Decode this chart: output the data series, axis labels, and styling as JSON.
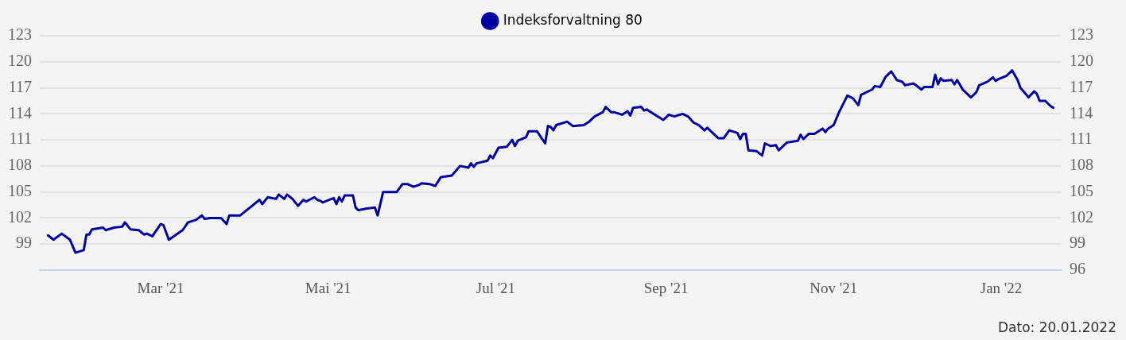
{
  "chart_data": {
    "type": "line",
    "annotations": [
      "Dato: 20.01.2022"
    ],
    "x": [
      "2021-01-19",
      "2021-01-21",
      "2021-01-24",
      "2021-01-27",
      "2021-01-29",
      "2021-02-01",
      "2021-02-02",
      "2021-02-03",
      "2021-02-04",
      "2021-02-08",
      "2021-02-09",
      "2021-02-12",
      "2021-02-15",
      "2021-02-16",
      "2021-02-18",
      "2021-02-21",
      "2021-02-23",
      "2021-02-24",
      "2021-02-26",
      "2021-03-01",
      "2021-03-02",
      "2021-03-04",
      "2021-03-09",
      "2021-03-11",
      "2021-03-14",
      "2021-03-16",
      "2021-03-17",
      "2021-03-19",
      "2021-03-23",
      "2021-03-25",
      "2021-03-26",
      "2021-03-30",
      "2021-04-06",
      "2021-04-07",
      "2021-04-09",
      "2021-04-12",
      "2021-04-13",
      "2021-04-15",
      "2021-04-16",
      "2021-04-18",
      "2021-04-20",
      "2021-04-22",
      "2021-04-23",
      "2021-04-26",
      "2021-04-27",
      "2021-04-28",
      "2021-04-29",
      "2021-05-03",
      "2021-05-04",
      "2021-05-05",
      "2021-05-06",
      "2021-05-07",
      "2021-05-10",
      "2021-05-11",
      "2021-05-12",
      "2021-05-15",
      "2021-05-18",
      "2021-05-19",
      "2021-05-21",
      "2021-05-26",
      "2021-05-28",
      "2021-05-30",
      "2021-06-01",
      "2021-06-03",
      "2021-06-04",
      "2021-06-07",
      "2021-06-09",
      "2021-06-11",
      "2021-06-15",
      "2021-06-18",
      "2021-06-21",
      "2021-06-22",
      "2021-06-23",
      "2021-06-24",
      "2021-06-28",
      "2021-06-29",
      "2021-06-30",
      "2021-07-02",
      "2021-07-05",
      "2021-07-07",
      "2021-07-08",
      "2021-07-09",
      "2021-07-12",
      "2021-07-13",
      "2021-07-16",
      "2021-07-19",
      "2021-07-20",
      "2021-07-21",
      "2021-07-22",
      "2021-07-23",
      "2021-07-27",
      "2021-07-29",
      "2021-08-02",
      "2021-08-04",
      "2021-08-06",
      "2021-08-09",
      "2021-08-10",
      "2021-08-12",
      "2021-08-13",
      "2021-08-16",
      "2021-08-18",
      "2021-08-19",
      "2021-08-20",
      "2021-08-23",
      "2021-08-24",
      "2021-08-25",
      "2021-08-28",
      "2021-08-31",
      "2021-09-02",
      "2021-09-04",
      "2021-09-07",
      "2021-09-09",
      "2021-09-11",
      "2021-09-13",
      "2021-09-15",
      "2021-09-16",
      "2021-09-20",
      "2021-09-22",
      "2021-09-24",
      "2021-09-27",
      "2021-09-28",
      "2021-09-29",
      "2021-09-30",
      "2021-10-01",
      "2021-10-04",
      "2021-10-06",
      "2021-10-07",
      "2021-10-09",
      "2021-10-11",
      "2021-10-12",
      "2021-10-15",
      "2021-10-19",
      "2021-10-20",
      "2021-10-21",
      "2021-10-23",
      "2021-10-25",
      "2021-10-28",
      "2021-10-29",
      "2021-10-30",
      "2021-11-01",
      "2021-11-03",
      "2021-11-06",
      "2021-11-08",
      "2021-11-10",
      "2021-11-11",
      "2021-11-15",
      "2021-11-16",
      "2021-11-18",
      "2021-11-20",
      "2021-11-22",
      "2021-11-24",
      "2021-11-26",
      "2021-11-27",
      "2021-11-30",
      "2021-12-01",
      "2021-12-03",
      "2021-12-04",
      "2021-12-07",
      "2021-12-08",
      "2021-12-09",
      "2021-12-10",
      "2021-12-11",
      "2021-12-14",
      "2021-12-15",
      "2021-12-16",
      "2021-12-18",
      "2021-12-21",
      "2021-12-23",
      "2021-12-24",
      "2021-12-27",
      "2021-12-29",
      "2021-12-30",
      "2021-12-31",
      "2022-01-03",
      "2022-01-05",
      "2022-01-07",
      "2022-01-08",
      "2022-01-11",
      "2022-01-13",
      "2022-01-14",
      "2022-01-15",
      "2022-01-17",
      "2022-01-19",
      "2022-01-20"
    ],
    "series": [
      {
        "name": "Indeksforvaltning 80",
        "color": "#0000a0",
        "values": [
          100.0,
          99.5,
          100.2,
          99.5,
          98.0,
          98.3,
          100.1,
          100.1,
          100.7,
          100.9,
          100.6,
          100.9,
          101.0,
          101.5,
          100.7,
          100.6,
          100.1,
          100.2,
          99.9,
          101.3,
          101.2,
          99.5,
          100.6,
          101.5,
          101.8,
          102.3,
          101.9,
          102.0,
          102.0,
          101.3,
          102.3,
          102.3,
          104.1,
          103.6,
          104.4,
          104.2,
          104.7,
          104.2,
          104.7,
          104.2,
          103.4,
          104.1,
          103.9,
          104.4,
          104.1,
          104.0,
          103.8,
          104.3,
          103.6,
          104.4,
          103.9,
          104.6,
          104.6,
          103.2,
          102.9,
          103.1,
          103.2,
          102.3,
          105.0,
          105.0,
          105.9,
          105.9,
          105.6,
          105.8,
          106.0,
          105.9,
          105.7,
          106.7,
          106.9,
          108.0,
          107.8,
          108.3,
          107.9,
          108.3,
          108.6,
          109.2,
          108.9,
          110.1,
          110.2,
          111.0,
          110.3,
          110.9,
          111.3,
          112.0,
          112.0,
          110.6,
          112.6,
          112.5,
          112.1,
          112.7,
          113.1,
          112.6,
          112.7,
          113.1,
          113.7,
          114.2,
          114.8,
          114.2,
          114.2,
          113.9,
          114.3,
          113.8,
          114.7,
          114.8,
          114.4,
          114.5,
          113.9,
          113.3,
          113.9,
          113.7,
          114.0,
          113.7,
          113.0,
          112.7,
          112.1,
          112.4,
          111.2,
          111.2,
          112.1,
          111.8,
          111.1,
          111.7,
          111.7,
          109.8,
          109.7,
          109.2,
          110.6,
          110.3,
          110.4,
          109.8,
          110.7,
          110.9,
          111.6,
          111.1,
          111.7,
          111.7,
          112.3,
          111.9,
          112.3,
          112.7,
          114.2,
          116.1,
          115.8,
          115.0,
          116.2,
          116.8,
          117.2,
          117.1,
          118.3,
          118.9,
          117.9,
          117.7,
          117.3,
          117.5,
          117.3,
          116.8,
          117.1,
          117.1,
          118.5,
          117.4,
          118.1,
          117.8,
          117.9,
          117.4,
          117.9,
          116.8,
          115.9,
          116.5,
          117.3,
          117.7,
          118.2,
          117.8,
          118.0,
          118.4,
          119.0,
          117.9,
          117.0,
          115.9,
          116.6,
          116.3,
          115.5,
          115.5,
          114.9,
          114.7
        ]
      }
    ],
    "xlim": [
      "2021-01-16",
      "2022-01-23"
    ],
    "xticks": [
      {
        "value": "2021-03-01",
        "label": "Mar '21"
      },
      {
        "value": "2021-05-01",
        "label": "Mai '21"
      },
      {
        "value": "2021-07-01",
        "label": "Jul '21"
      },
      {
        "value": "2021-09-01",
        "label": "Sep '21"
      },
      {
        "value": "2021-11-01",
        "label": "Nov '21"
      },
      {
        "value": "2022-01-01",
        "label": "Jan '22"
      }
    ],
    "ylim": [
      96,
      123
    ],
    "yticks": [
      99,
      102,
      105,
      108,
      111,
      114,
      117,
      120,
      123
    ],
    "y2lim": [
      96,
      123
    ],
    "y2ticks": [
      96,
      99,
      102,
      105,
      108,
      111,
      114,
      117,
      120,
      123
    ],
    "grid": "y",
    "legend": "top",
    "marker": "none",
    "line_style": "solid"
  }
}
